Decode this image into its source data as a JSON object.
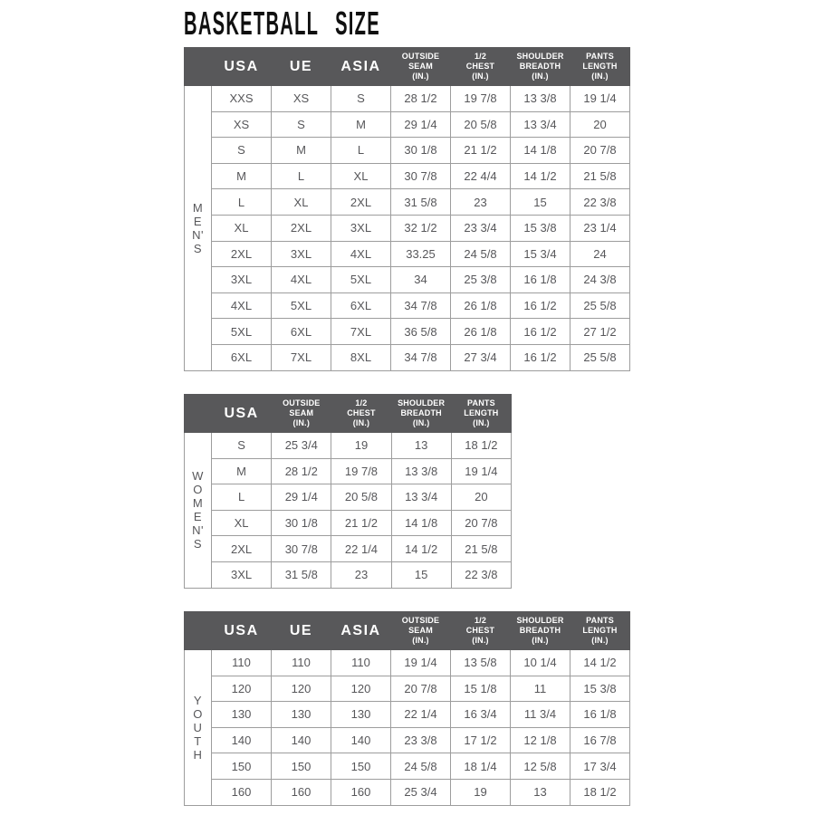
{
  "page": {
    "title": "BASKETBALL SIZE"
  },
  "colors": {
    "header_bg": "#58585a",
    "header_text": "#ffffff",
    "cell_text": "#57575a",
    "grid_border": "#9d9d9d",
    "title_text": "#101010",
    "background": "#ffffff"
  },
  "tables": [
    {
      "name": "mens",
      "side_label": "MEN'S",
      "side_letters": [
        "M",
        "E",
        "N'",
        "S"
      ],
      "columns": [
        "USA",
        "UE",
        "ASIA",
        "OUTSIDE\nSEAM\n(IN.)",
        "1/2\nCHEST\n(IN.)",
        "SHOULDER\nBREADTH\n(IN.)",
        "PANTS\nLENGTH\n(IN.)"
      ],
      "rows": [
        [
          "XXS",
          "XS",
          "S",
          "28 1/2",
          "19 7/8",
          "13 3/8",
          "19 1/4"
        ],
        [
          "XS",
          "S",
          "M",
          "29 1/4",
          "20 5/8",
          "13 3/4",
          "20"
        ],
        [
          "S",
          "M",
          "L",
          "30 1/8",
          "21 1/2",
          "14 1/8",
          "20 7/8"
        ],
        [
          "M",
          "L",
          "XL",
          "30 7/8",
          "22 4/4",
          "14 1/2",
          "21 5/8"
        ],
        [
          "L",
          "XL",
          "2XL",
          "31 5/8",
          "23",
          "15",
          "22 3/8"
        ],
        [
          "XL",
          "2XL",
          "3XL",
          "32 1/2",
          "23 3/4",
          "15 3/8",
          "23 1/4"
        ],
        [
          "2XL",
          "3XL",
          "4XL",
          "33.25",
          "24 5/8",
          "15 3/4",
          "24"
        ],
        [
          "3XL",
          "4XL",
          "5XL",
          "34",
          "25 3/8",
          "16 1/8",
          "24 3/8"
        ],
        [
          "4XL",
          "5XL",
          "6XL",
          "34 7/8",
          "26 1/8",
          "16 1/2",
          "25 5/8"
        ],
        [
          "5XL",
          "6XL",
          "7XL",
          "36 5/8",
          "26 1/8",
          "16 1/2",
          "27 1/2"
        ],
        [
          "6XL",
          "7XL",
          "8XL",
          "34 7/8",
          "27 3/4",
          "16 1/2",
          "25 5/8"
        ]
      ]
    },
    {
      "name": "womens",
      "side_label": "WOMEN'S",
      "side_letters": [
        "W",
        "O",
        "M",
        "E",
        "N'",
        "S"
      ],
      "columns": [
        "USA",
        "OUTSIDE\nSEAM\n(IN.)",
        "1/2\nCHEST\n(IN.)",
        "SHOULDER\nBREADTH\n(IN.)",
        "PANTS\nLENGTH\n(IN.)"
      ],
      "rows": [
        [
          "S",
          "25 3/4",
          "19",
          "13",
          "18 1/2"
        ],
        [
          "M",
          "28 1/2",
          "19 7/8",
          "13 3/8",
          "19 1/4"
        ],
        [
          "L",
          "29 1/4",
          "20 5/8",
          "13 3/4",
          "20"
        ],
        [
          "XL",
          "30 1/8",
          "21 1/2",
          "14 1/8",
          "20 7/8"
        ],
        [
          "2XL",
          "30 7/8",
          "22 1/4",
          "14 1/2",
          "21 5/8"
        ],
        [
          "3XL",
          "31 5/8",
          "23",
          "15",
          "22 3/8"
        ]
      ]
    },
    {
      "name": "youth",
      "side_label": "YOUTH",
      "side_letters": [
        "Y",
        "O",
        "U",
        "T",
        "H"
      ],
      "columns": [
        "USA",
        "UE",
        "ASIA",
        "OUTSIDE\nSEAM\n(IN.)",
        "1/2\nCHEST\n(IN.)",
        "SHOULDER\nBREADTH\n(IN.)",
        "PANTS\nLENGTH\n(IN.)"
      ],
      "rows": [
        [
          "110",
          "110",
          "110",
          "19 1/4",
          "13 5/8",
          "10 1/4",
          "14 1/2"
        ],
        [
          "120",
          "120",
          "120",
          "20 7/8",
          "15 1/8",
          "11",
          "15 3/8"
        ],
        [
          "130",
          "130",
          "130",
          "22 1/4",
          "16 3/4",
          "11 3/4",
          "16 1/8"
        ],
        [
          "140",
          "140",
          "140",
          "23 3/8",
          "17 1/2",
          "12 1/8",
          "16 7/8"
        ],
        [
          "150",
          "150",
          "150",
          "24 5/8",
          "18 1/4",
          "12 5/8",
          "17 3/4"
        ],
        [
          "160",
          "160",
          "160",
          "25 3/4",
          "19",
          "13",
          "18 1/2"
        ]
      ]
    }
  ]
}
